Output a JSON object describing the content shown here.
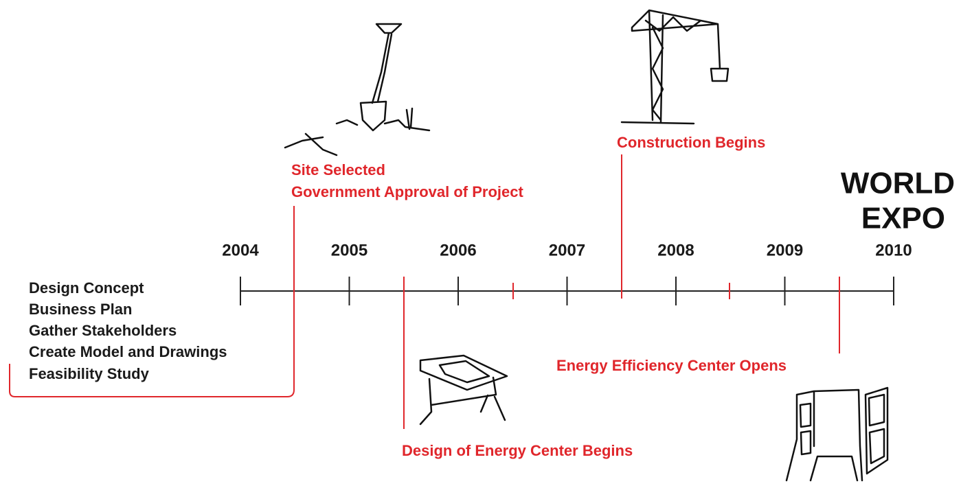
{
  "title": {
    "lines": [
      "WORLD",
      "EXPO"
    ]
  },
  "axis": {
    "years": [
      "2004",
      "2005",
      "2006",
      "2007",
      "2008",
      "2009",
      "2010"
    ]
  },
  "early_tasks": [
    "Design Concept",
    "Business Plan",
    "Gather Stakeholders",
    "Create Model and Drawings",
    "Feasibility Study"
  ],
  "milestones": [
    {
      "lines": [
        "Site Selected",
        "Government Approval of Project"
      ]
    },
    {
      "lines": [
        "Design of Energy Center Begins"
      ]
    },
    {
      "lines": [
        "Construction Begins"
      ]
    },
    {
      "lines": [
        "Energy Efficiency Center Opens"
      ]
    }
  ]
}
